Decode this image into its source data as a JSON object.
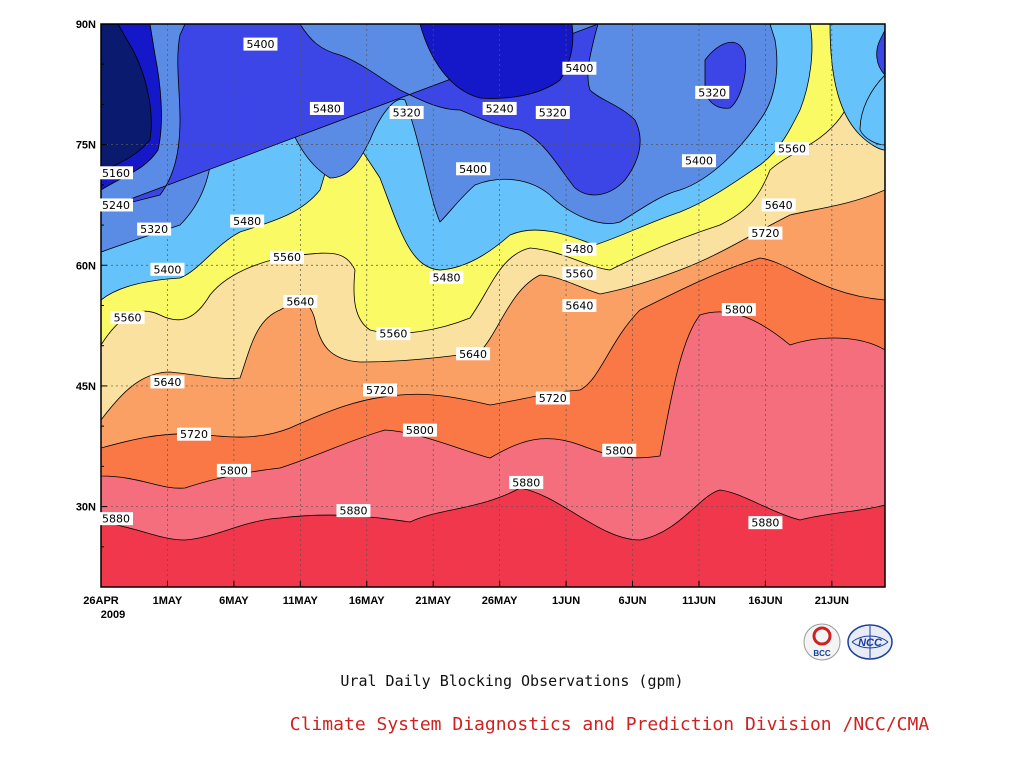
{
  "chart_data": {
    "type": "contour",
    "title": "Ural Daily Blocking Observations (gpm)",
    "x_ticks": [
      "26APR",
      "1MAY",
      "6MAY",
      "11MAY",
      "16MAY",
      "21MAY",
      "26MAY",
      "1JUN",
      "6JUN",
      "11JUN",
      "16JUN",
      "21JUN"
    ],
    "x_year": "2009",
    "xlim": [
      "2009-04-26",
      "2009-06-24"
    ],
    "y_ticks": [
      "90N",
      "75N",
      "60N",
      "45N",
      "30N"
    ],
    "ylim": [
      20,
      90
    ],
    "contour_interval": 80,
    "levels": [
      5160,
      5240,
      5320,
      5400,
      5480,
      5560,
      5640,
      5720,
      5800,
      5880
    ],
    "fill_colors": [
      "#0a1a6e",
      "#1418c8",
      "#3c46e6",
      "#5a8ce6",
      "#66c2fa",
      "#fafa64",
      "#fae1a0",
      "#faa064",
      "#fa7846",
      "#f56e7d",
      "#f0374b"
    ],
    "grid": true,
    "contour_labels": [
      {
        "date": "2009-04-27",
        "lat": 71.5,
        "value": "5160"
      },
      {
        "date": "2009-04-26",
        "lat": 67.5,
        "value": "5240"
      },
      {
        "date": "2009-04-30",
        "lat": 64.5,
        "value": "5320"
      },
      {
        "date": "2009-05-01",
        "lat": 59.5,
        "value": "5400"
      },
      {
        "date": "2009-04-28",
        "lat": 53.5,
        "value": "5560"
      },
      {
        "date": "2009-05-01",
        "lat": 45.5,
        "value": "5640"
      },
      {
        "date": "2009-05-03",
        "lat": 39.0,
        "value": "5720"
      },
      {
        "date": "2009-05-06",
        "lat": 34.5,
        "value": "5800"
      },
      {
        "date": "2009-04-26",
        "lat": 28.5,
        "value": "5880"
      },
      {
        "date": "2009-05-08",
        "lat": 87.5,
        "value": "5400"
      },
      {
        "date": "2009-05-07",
        "lat": 65.5,
        "value": "5480"
      },
      {
        "date": "2009-05-10",
        "lat": 61.0,
        "value": "5560"
      },
      {
        "date": "2009-05-11",
        "lat": 55.5,
        "value": "5640"
      },
      {
        "date": "2009-05-13",
        "lat": 79.5,
        "value": "5480"
      },
      {
        "date": "2009-05-15",
        "lat": 29.5,
        "value": "5880"
      },
      {
        "date": "2009-05-18",
        "lat": 51.5,
        "value": "5560"
      },
      {
        "date": "2009-05-17",
        "lat": 44.5,
        "value": "5720"
      },
      {
        "date": "2009-05-19",
        "lat": 79.0,
        "value": "5320"
      },
      {
        "date": "2009-05-20",
        "lat": 39.5,
        "value": "5800"
      },
      {
        "date": "2009-05-22",
        "lat": 58.5,
        "value": "5480"
      },
      {
        "date": "2009-05-24",
        "lat": 72.0,
        "value": "5400"
      },
      {
        "date": "2009-05-24",
        "lat": 49.0,
        "value": "5640"
      },
      {
        "date": "2009-05-26",
        "lat": 79.5,
        "value": "5240"
      },
      {
        "date": "2009-05-28",
        "lat": 33.0,
        "value": "5880"
      },
      {
        "date": "2009-05-30",
        "lat": 43.5,
        "value": "5720"
      },
      {
        "date": "2009-05-30",
        "lat": 79.0,
        "value": "5320"
      },
      {
        "date": "2009-06-01",
        "lat": 84.5,
        "value": "5400"
      },
      {
        "date": "2009-06-01",
        "lat": 62.0,
        "value": "5480"
      },
      {
        "date": "2009-06-01",
        "lat": 59.0,
        "value": "5560"
      },
      {
        "date": "2009-06-01",
        "lat": 55.0,
        "value": "5640"
      },
      {
        "date": "2009-06-04",
        "lat": 37.0,
        "value": "5800"
      },
      {
        "date": "2009-06-11",
        "lat": 81.5,
        "value": "5320"
      },
      {
        "date": "2009-06-10",
        "lat": 73.0,
        "value": "5400"
      },
      {
        "date": "2009-06-13",
        "lat": 54.5,
        "value": "5800"
      },
      {
        "date": "2009-06-15",
        "lat": 64.0,
        "value": "5720"
      },
      {
        "date": "2009-06-16",
        "lat": 67.5,
        "value": "5640"
      },
      {
        "date": "2009-06-17",
        "lat": 74.5,
        "value": "5560"
      },
      {
        "date": "2009-06-15",
        "lat": 28.0,
        "value": "5880"
      }
    ]
  },
  "footer": {
    "credit": "Climate System Diagnostics and Prediction Division /NCC/CMA",
    "logo_left_text": "BCC",
    "logo_right_text": "NCC"
  }
}
